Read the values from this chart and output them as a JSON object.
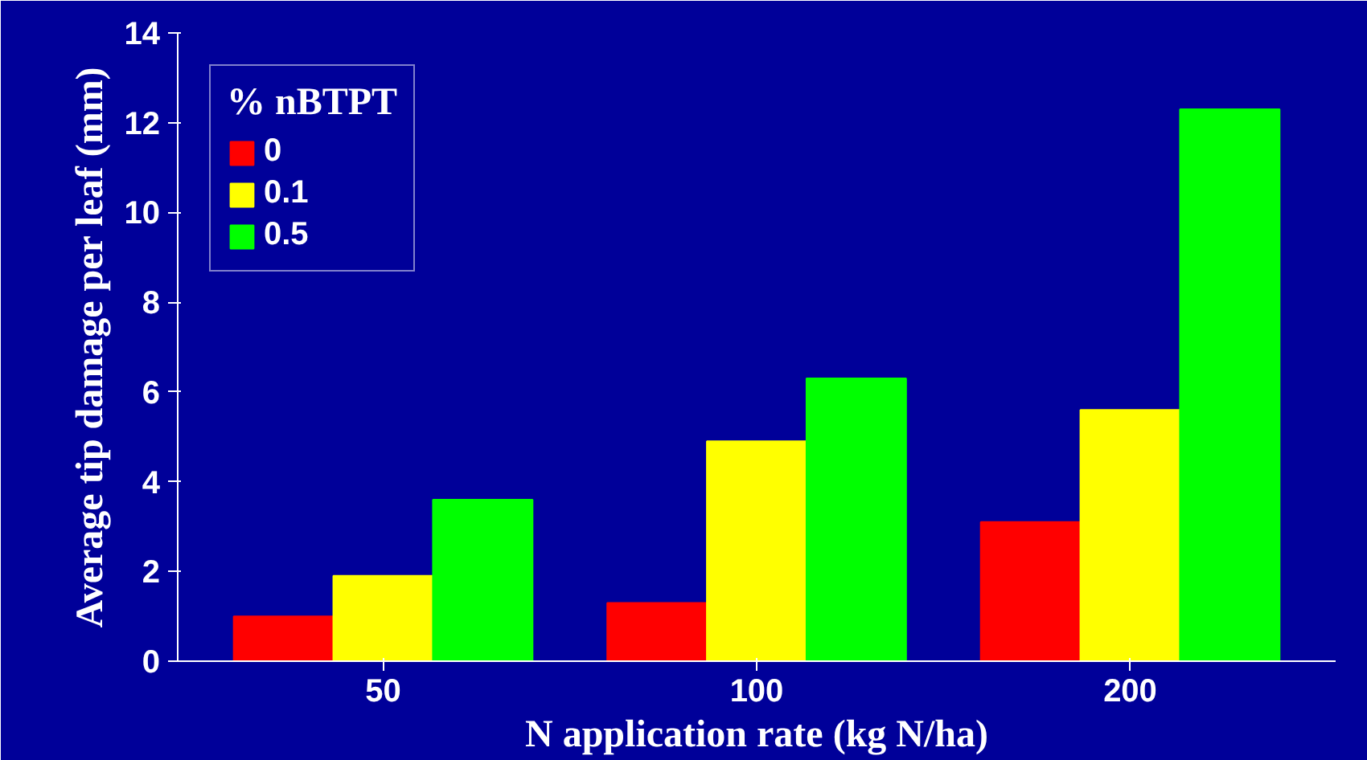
{
  "chart_data": {
    "type": "bar",
    "xlabel": "N application rate (kg N/ha)",
    "ylabel": "Average tip damage per leaf (mm)",
    "legend_title": "% nBTPT",
    "categories": [
      "50",
      "100",
      "200"
    ],
    "series": [
      {
        "name": "0",
        "color": "#ff0000",
        "values": [
          1.0,
          1.3,
          3.1
        ]
      },
      {
        "name": "0.1",
        "color": "#ffff00",
        "values": [
          1.9,
          4.9,
          5.6
        ]
      },
      {
        "name": "0.5",
        "color": "#00ff00",
        "values": [
          3.6,
          6.3,
          12.3
        ]
      }
    ],
    "ylim": [
      0,
      14
    ],
    "yticks": [
      0,
      2,
      4,
      6,
      8,
      10,
      12,
      14
    ],
    "grid": false,
    "legend": "top left"
  }
}
